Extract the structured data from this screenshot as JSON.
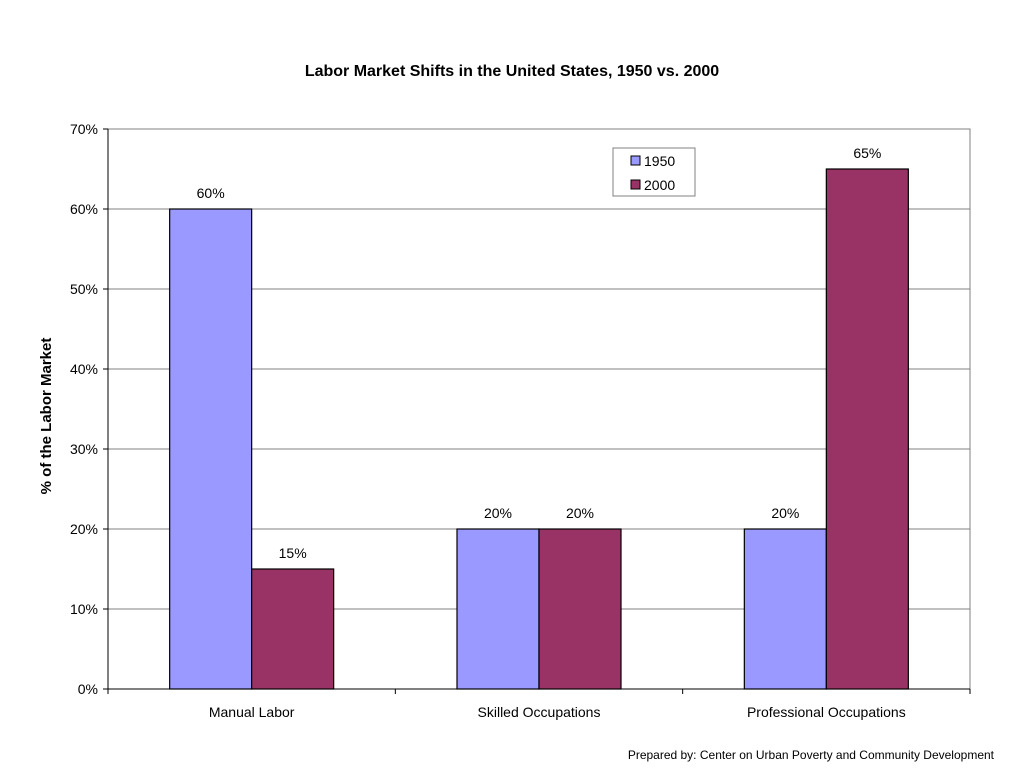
{
  "chart_data": {
    "type": "bar",
    "title": "Labor Market Shifts in the United States, 1950 vs. 2000",
    "xlabel": "",
    "ylabel": "% of the Labor Market",
    "categories": [
      "Manual Labor",
      "Skilled Occupations",
      "Professional Occupations"
    ],
    "series": [
      {
        "name": "1950",
        "values": [
          60,
          20,
          20
        ],
        "labels": [
          "60%",
          "20%",
          "20%"
        ],
        "color": "#9999ff"
      },
      {
        "name": "2000",
        "values": [
          15,
          20,
          65
        ],
        "labels": [
          "15%",
          "20%",
          "65%"
        ],
        "color": "#993366"
      }
    ],
    "ylim": [
      0,
      70
    ],
    "yticks": [
      0,
      10,
      20,
      30,
      40,
      50,
      60,
      70
    ],
    "ytick_labels": [
      "0%",
      "10%",
      "20%",
      "30%",
      "40%",
      "50%",
      "60%",
      "70%"
    ],
    "grid": true,
    "legend_position": "top-right"
  },
  "footer": {
    "credit": "Prepared by: Center on Urban Poverty and Community Development"
  }
}
